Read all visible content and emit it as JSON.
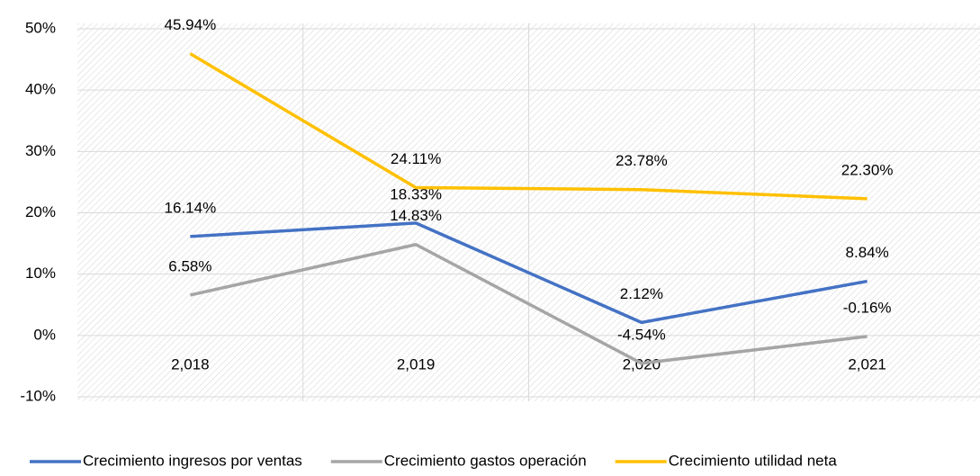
{
  "chart_data": {
    "type": "line",
    "categories": [
      "2,018",
      "2,019",
      "2,020",
      "2,021"
    ],
    "series": [
      {
        "name": "Crecimiento ingresos por ventas",
        "color": "#4472c4",
        "values": [
          16.14,
          18.33,
          2.12,
          8.84
        ],
        "value_labels": [
          "16.14%",
          "18.33%",
          "2.12%",
          "8.84%"
        ]
      },
      {
        "name": "Crecimiento gastos operación",
        "color": "#a5a5a5",
        "values": [
          6.58,
          14.83,
          -4.54,
          -0.16
        ],
        "value_labels": [
          "6.58%",
          "14.83%",
          "-4.54%",
          "-0.16%"
        ]
      },
      {
        "name": "Crecimiento utilidad neta",
        "color": "#ffc000",
        "values": [
          45.94,
          24.11,
          23.78,
          22.3
        ],
        "value_labels": [
          "45.94%",
          "24.11%",
          "23.78%",
          "22.30%"
        ]
      }
    ],
    "ylim": [
      -10,
      50
    ],
    "yticks": [
      {
        "value": -10,
        "label": "-10%"
      },
      {
        "value": 0,
        "label": "0%"
      },
      {
        "value": 10,
        "label": "10%"
      },
      {
        "value": 20,
        "label": "20%"
      },
      {
        "value": 30,
        "label": "30%"
      },
      {
        "value": 40,
        "label": "40%"
      },
      {
        "value": 50,
        "label": "50%"
      }
    ],
    "grid": true
  }
}
